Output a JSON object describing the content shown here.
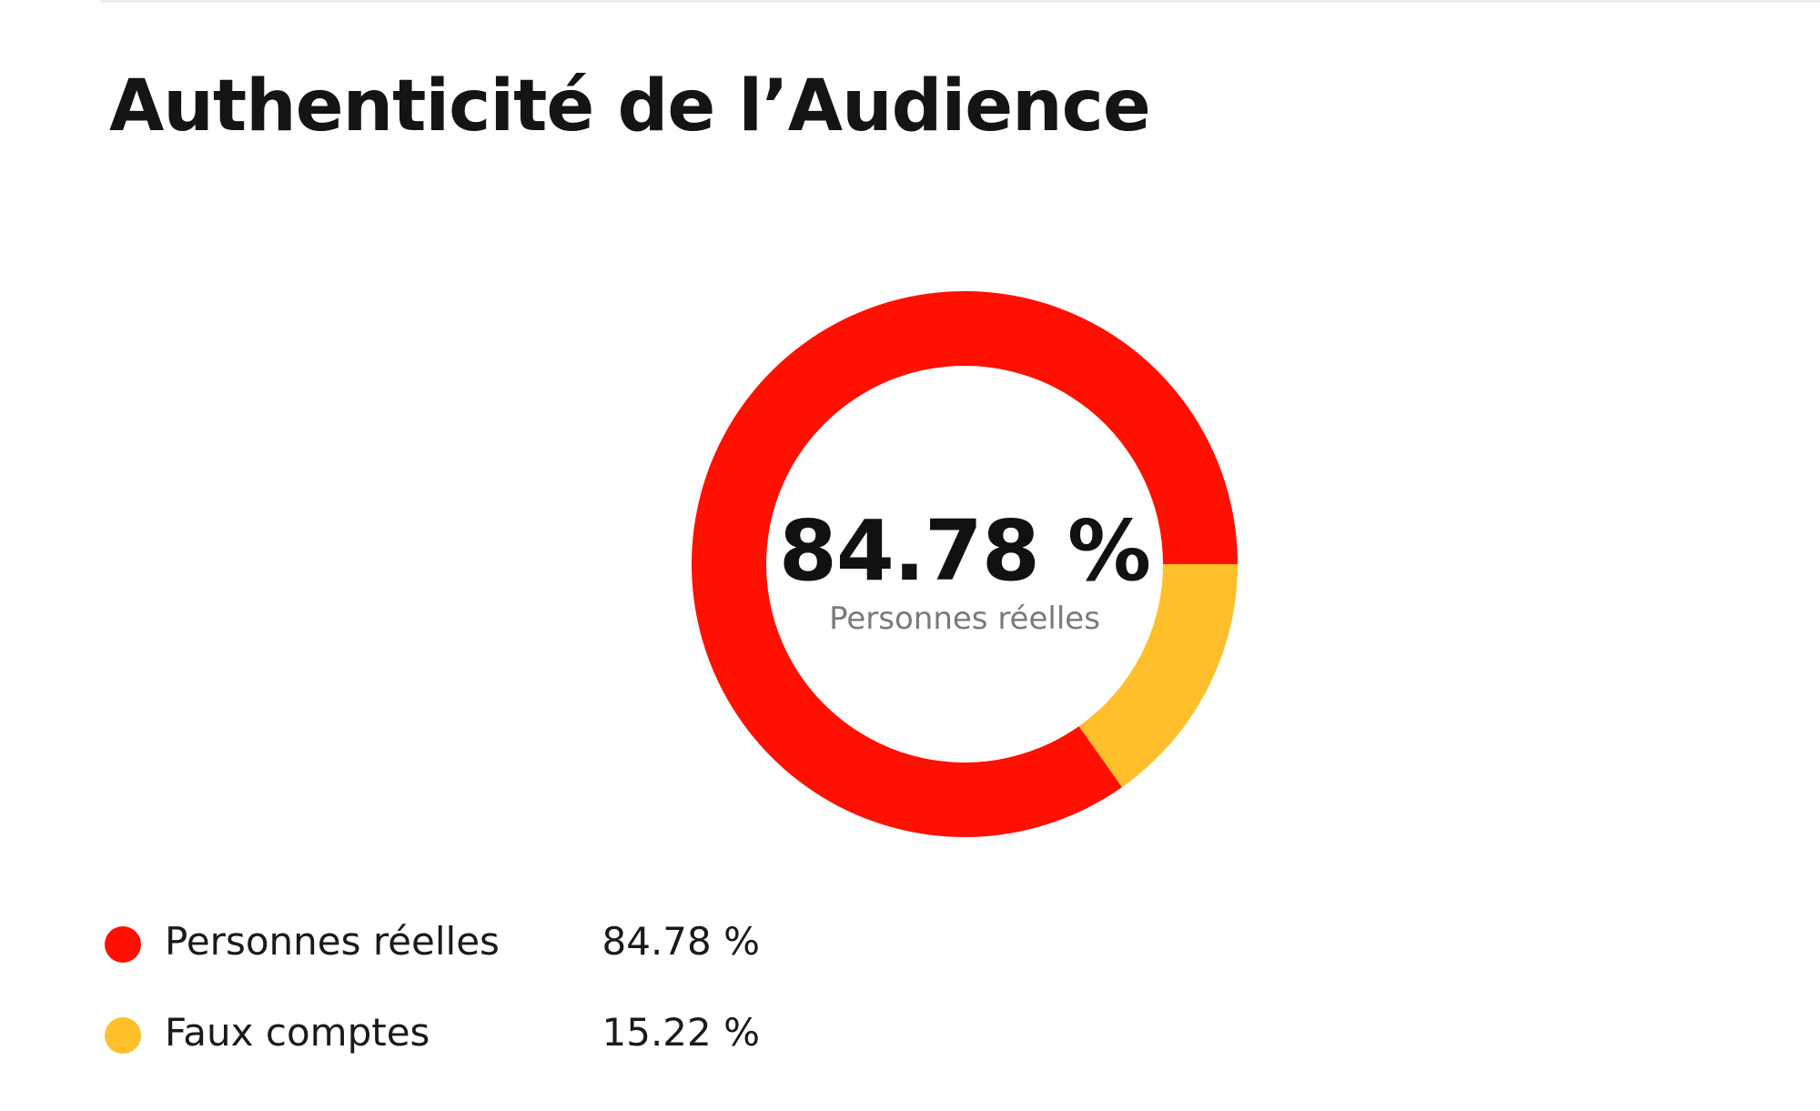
{
  "title": "Authenticité de l’Audience",
  "center": {
    "value": "84.78 %",
    "label": "Personnes réelles"
  },
  "legend": [
    {
      "label": "Personnes réelles",
      "value": "84.78 %",
      "color": "#ff1000"
    },
    {
      "label": "Faux comptes",
      "value": "15.22 %",
      "color": "#ffbf2a"
    }
  ],
  "chart_data": {
    "type": "pie",
    "variant": "donut",
    "title": "Authenticité de l’Audience",
    "categories": [
      "Personnes réelles",
      "Faux comptes"
    ],
    "values": [
      84.78,
      15.22
    ],
    "unit": "%",
    "colors": [
      "#ff1000",
      "#ffbf2a"
    ],
    "legend_position": "bottom-left"
  }
}
